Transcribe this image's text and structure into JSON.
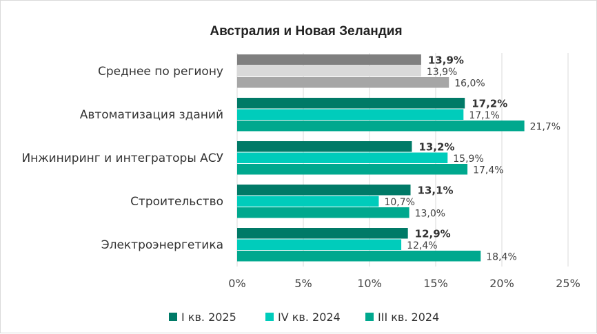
{
  "chart_data": {
    "type": "bar",
    "orientation": "horizontal",
    "title": "Австралия и Новая Зеландия",
    "xlabel": "",
    "ylabel": "",
    "xlim": [
      0,
      25
    ],
    "x_ticks": [
      "0%",
      "5%",
      "10%",
      "15%",
      "20%",
      "25%"
    ],
    "grid": true,
    "legend_position": "bottom",
    "categories": [
      "Среднее по региону",
      "Автоматизация зданий",
      "Инжиниринг и интеграторы АСУ",
      "Строительство",
      "Электроэнергетика"
    ],
    "series": [
      {
        "name": "I кв. 2025",
        "values": [
          13.9,
          17.2,
          13.2,
          13.1,
          12.9
        ],
        "labels": [
          "13,9%",
          "17,2%",
          "13,2%",
          "13,1%",
          "12,9%"
        ]
      },
      {
        "name": "IV кв. 2024",
        "values": [
          13.9,
          17.1,
          15.9,
          10.7,
          12.4
        ],
        "labels": [
          "13,9%",
          "17,1%",
          "15,9%",
          "10,7%",
          "12,4%"
        ]
      },
      {
        "name": "III кв. 2024",
        "values": [
          16.0,
          21.7,
          17.4,
          13.0,
          18.4
        ],
        "labels": [
          "16,0%",
          "21,7%",
          "17,4%",
          "13,0%",
          "18,4%"
        ]
      }
    ],
    "series_colors": [
      "#007a67",
      "#00ccbb",
      "#00a88e"
    ],
    "average_colors": [
      "#7f7f7f",
      "#d9d9d9",
      "#a6a6a6"
    ]
  }
}
